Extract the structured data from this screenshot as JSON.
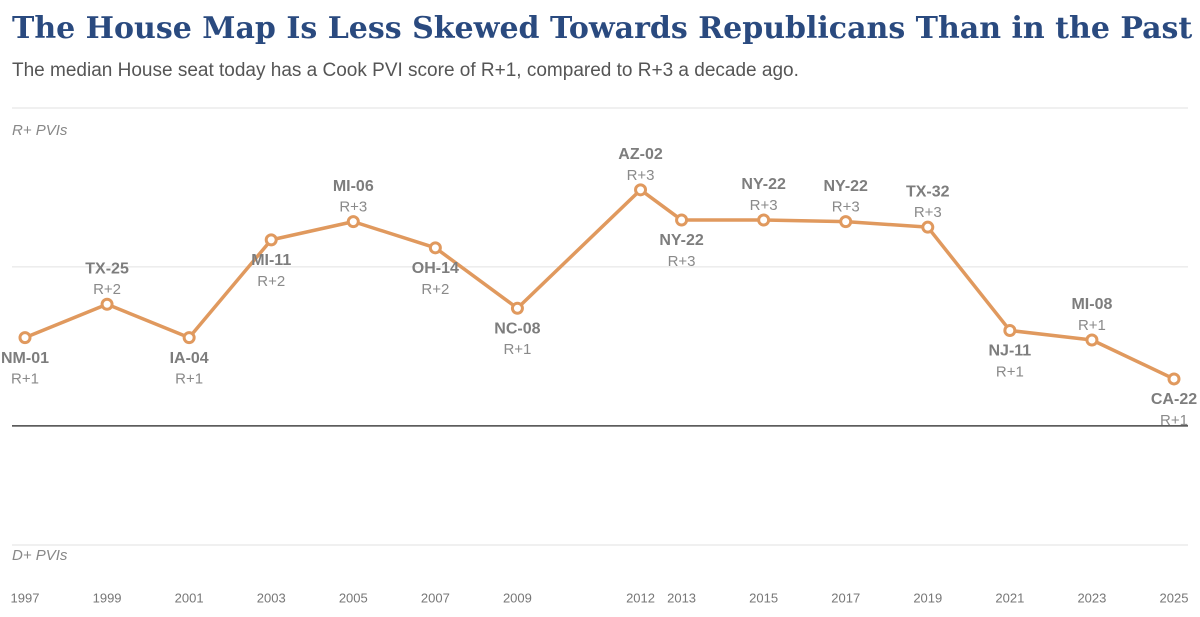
{
  "chart_data": {
    "type": "line",
    "title": "The House Map Is Less Skewed Towards Republicans Than in the Past",
    "subtitle": "The median House seat today has a Cook PVI score of R+1, compared to R+3 a decade ago.",
    "annotations": [
      "R+ PVIs",
      "D+ PVIs"
    ],
    "x": [
      1997,
      1999,
      2001,
      2003,
      2005,
      2007,
      2009,
      2012,
      2013,
      2015,
      2017,
      2019,
      2021,
      2023,
      2025
    ],
    "values": [
      1.11,
      1.53,
      1.11,
      2.34,
      2.57,
      2.24,
      1.48,
      2.97,
      2.59,
      2.59,
      2.57,
      2.5,
      1.2,
      1.08,
      0.59
    ],
    "point_labels": [
      "NM-01",
      "TX-25",
      "IA-04",
      "MI-11",
      "MI-06",
      "OH-14",
      "NC-08",
      "AZ-02",
      "NY-22",
      "NY-22",
      "NY-22",
      "TX-32",
      "NJ-11",
      "MI-08",
      "CA-22"
    ],
    "value_labels": [
      "R+1",
      "R+2",
      "R+1",
      "R+2",
      "R+3",
      "R+2",
      "R+1",
      "R+3",
      "R+3",
      "R+3",
      "R+3",
      "R+3",
      "R+1",
      "R+1",
      "R+1"
    ],
    "color": "#e0995e",
    "xlim": [
      1997,
      2025
    ],
    "xticks": [
      1997,
      1999,
      2001,
      2003,
      2005,
      2007,
      2009,
      2012,
      2013,
      2015,
      2017,
      2019,
      2021,
      2023,
      2025
    ],
    "ylim": [
      -1.5,
      4
    ],
    "yticks": [
      -1.5,
      0,
      2,
      4
    ],
    "grid": true
  }
}
